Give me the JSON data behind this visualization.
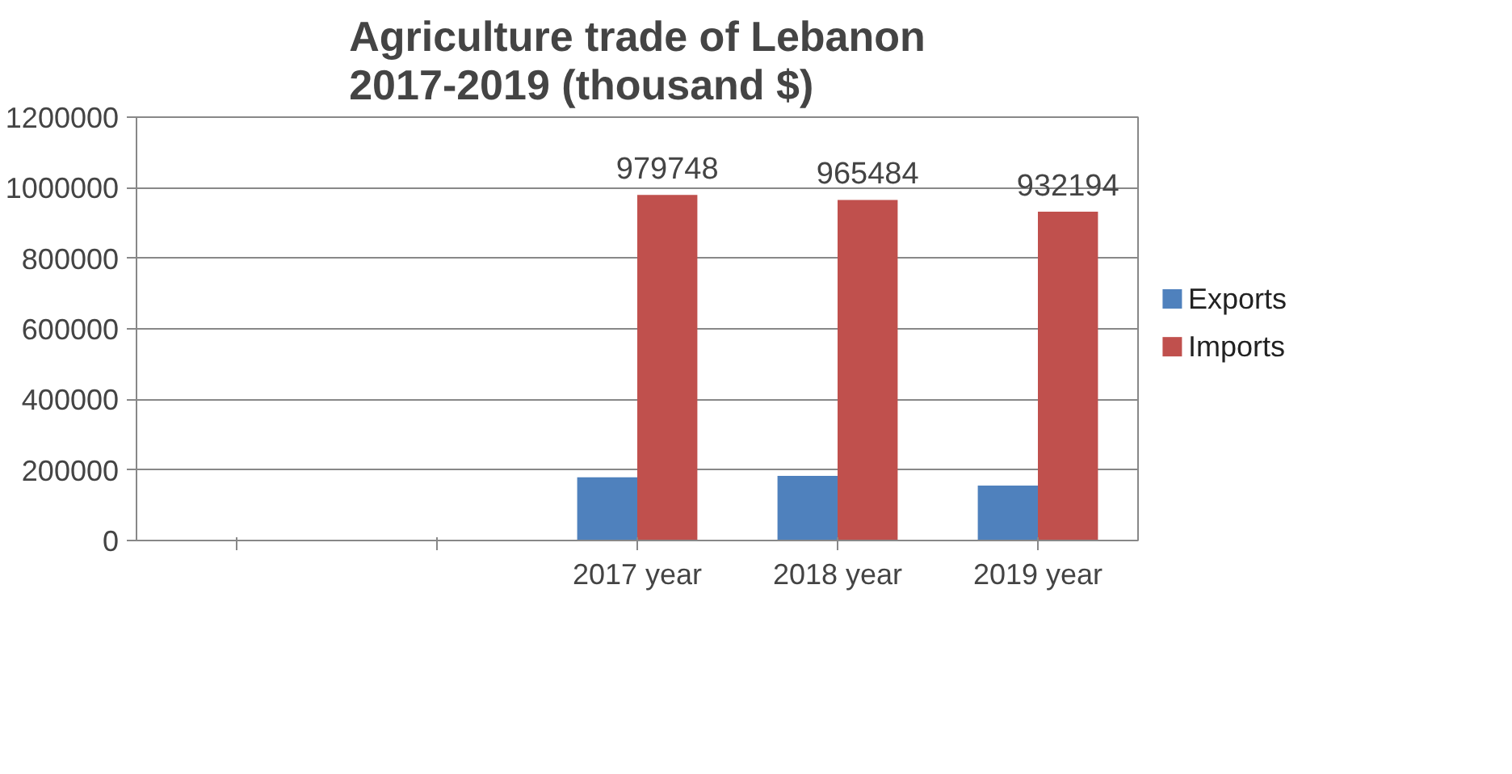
{
  "chart_data": {
    "type": "bar",
    "title": "Agriculture trade of Lebanon\n2017-2019 (thousand $)",
    "categories": [
      null,
      null,
      "2017 year",
      "2018 year",
      "2019 year"
    ],
    "series": [
      {
        "name": "Exports",
        "color": "#4f81bd",
        "values": [
          null,
          null,
          179000,
          183000,
          156000
        ]
      },
      {
        "name": "Imports",
        "color": "#c0504d",
        "values": [
          null,
          null,
          979748,
          965484,
          932194
        ],
        "value_labels": [
          null,
          null,
          "979748",
          "965484",
          "932194"
        ]
      }
    ],
    "ylim": [
      0,
      1200000
    ],
    "yticks": [
      0,
      200000,
      400000,
      600000,
      800000,
      1000000,
      1200000
    ],
    "grid": "y",
    "legend": "right"
  }
}
